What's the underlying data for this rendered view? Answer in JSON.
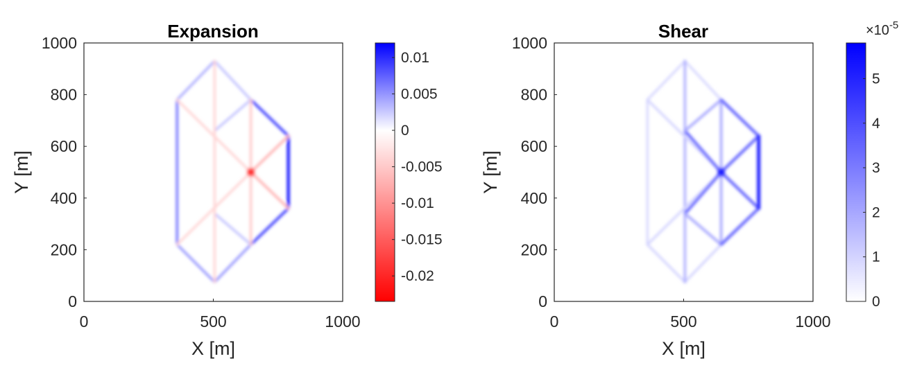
{
  "chart_data": [
    {
      "type": "heatmap",
      "title": "Expansion",
      "xlabel": "X [m]",
      "ylabel": "Y [m]",
      "xlim": [
        0,
        1000
      ],
      "ylim": [
        0,
        1000
      ],
      "xticks": [
        "0",
        "500",
        "1000"
      ],
      "yticks": [
        "0",
        "200",
        "400",
        "600",
        "800",
        "1000"
      ],
      "colorbar": {
        "range": [
          -0.0235,
          0.012
        ],
        "colormap": [
          "#ff0000",
          "#ffffff",
          "#0000ff"
        ],
        "ticks": [
          {
            "value": 0.01,
            "label": "0.01"
          },
          {
            "value": 0.005,
            "label": "0.005"
          },
          {
            "value": 0,
            "label": "0"
          },
          {
            "value": -0.005,
            "label": "-0.005"
          },
          {
            "value": -0.01,
            "label": "-0.01"
          },
          {
            "value": -0.015,
            "label": "-0.015"
          },
          {
            "value": -0.02,
            "label": "-0.02"
          }
        ]
      },
      "network_segments": [
        {
          "from": [
            360,
            780
          ],
          "to": [
            505,
            930
          ],
          "value": 0.004
        },
        {
          "from": [
            505,
            930
          ],
          "to": [
            645,
            780
          ],
          "value": 0.003
        },
        {
          "from": [
            360,
            780
          ],
          "to": [
            360,
            220
          ],
          "value": 0.0065
        },
        {
          "from": [
            360,
            220
          ],
          "to": [
            505,
            75
          ],
          "value": 0.005
        },
        {
          "from": [
            505,
            75
          ],
          "to": [
            645,
            220
          ],
          "value": 0.005
        },
        {
          "from": [
            645,
            780
          ],
          "to": [
            790,
            640
          ],
          "value": 0.009
        },
        {
          "from": [
            790,
            640
          ],
          "to": [
            790,
            360
          ],
          "value": 0.012
        },
        {
          "from": [
            645,
            220
          ],
          "to": [
            790,
            360
          ],
          "value": 0.009
        },
        {
          "from": [
            505,
            660
          ],
          "to": [
            645,
            780
          ],
          "value": 0.003
        },
        {
          "from": [
            505,
            340
          ],
          "to": [
            645,
            220
          ],
          "value": 0.003
        },
        {
          "from": [
            505,
            930
          ],
          "to": [
            505,
            75
          ],
          "value": -0.004
        },
        {
          "from": [
            645,
            780
          ],
          "to": [
            645,
            220
          ],
          "value": -0.005
        },
        {
          "from": [
            360,
            780
          ],
          "to": [
            645,
            500
          ],
          "value": -0.004
        },
        {
          "from": [
            645,
            500
          ],
          "to": [
            790,
            640
          ],
          "value": -0.007
        },
        {
          "from": [
            645,
            500
          ],
          "to": [
            790,
            360
          ],
          "value": -0.007
        },
        {
          "from": [
            360,
            220
          ],
          "to": [
            645,
            500
          ],
          "value": -0.004
        }
      ],
      "hotspot": {
        "x": 645,
        "y": 500,
        "value": -0.0235
      }
    },
    {
      "type": "heatmap",
      "title": "Shear",
      "xlabel": "X [m]",
      "ylabel": "Y [m]",
      "xlim": [
        0,
        1000
      ],
      "ylim": [
        0,
        1000
      ],
      "xticks": [
        "0",
        "500",
        "1000"
      ],
      "yticks": [
        "0",
        "200",
        "400",
        "600",
        "800",
        "1000"
      ],
      "colorbar": {
        "range": [
          0,
          5.8
        ],
        "multiplier": "×10",
        "exponent": "-5",
        "colormap": [
          "#ffffff",
          "#0000ff"
        ],
        "ticks": [
          {
            "value": 5,
            "label": "5"
          },
          {
            "value": 4,
            "label": "4"
          },
          {
            "value": 3,
            "label": "3"
          },
          {
            "value": 2,
            "label": "2"
          },
          {
            "value": 1,
            "label": "1"
          },
          {
            "value": 0,
            "label": "0"
          }
        ]
      },
      "network_segments": [
        {
          "from": [
            360,
            780
          ],
          "to": [
            505,
            930
          ],
          "value": 0.9
        },
        {
          "from": [
            505,
            930
          ],
          "to": [
            645,
            780
          ],
          "value": 0.9
        },
        {
          "from": [
            360,
            780
          ],
          "to": [
            360,
            220
          ],
          "value": 0.9
        },
        {
          "from": [
            360,
            220
          ],
          "to": [
            505,
            75
          ],
          "value": 1.0
        },
        {
          "from": [
            505,
            75
          ],
          "to": [
            645,
            220
          ],
          "value": 1.0
        },
        {
          "from": [
            505,
            930
          ],
          "to": [
            505,
            75
          ],
          "value": 1.8
        },
        {
          "from": [
            360,
            780
          ],
          "to": [
            645,
            500
          ],
          "value": 1.0
        },
        {
          "from": [
            360,
            220
          ],
          "to": [
            645,
            500
          ],
          "value": 1.0
        },
        {
          "from": [
            505,
            660
          ],
          "to": [
            645,
            500
          ],
          "value": 3.5
        },
        {
          "from": [
            505,
            340
          ],
          "to": [
            645,
            500
          ],
          "value": 3.5
        },
        {
          "from": [
            505,
            660
          ],
          "to": [
            645,
            780
          ],
          "value": 2.0
        },
        {
          "from": [
            505,
            340
          ],
          "to": [
            645,
            220
          ],
          "value": 2.0
        },
        {
          "from": [
            645,
            780
          ],
          "to": [
            645,
            220
          ],
          "value": 2.0
        },
        {
          "from": [
            645,
            780
          ],
          "to": [
            790,
            640
          ],
          "value": 3.5
        },
        {
          "from": [
            645,
            220
          ],
          "to": [
            790,
            360
          ],
          "value": 3.5
        },
        {
          "from": [
            645,
            500
          ],
          "to": [
            790,
            640
          ],
          "value": 3.5
        },
        {
          "from": [
            645,
            500
          ],
          "to": [
            790,
            360
          ],
          "value": 3.5
        },
        {
          "from": [
            790,
            640
          ],
          "to": [
            790,
            360
          ],
          "value": 5.3
        }
      ],
      "hotspot": {
        "x": 645,
        "y": 500,
        "value": 5.8
      }
    }
  ]
}
